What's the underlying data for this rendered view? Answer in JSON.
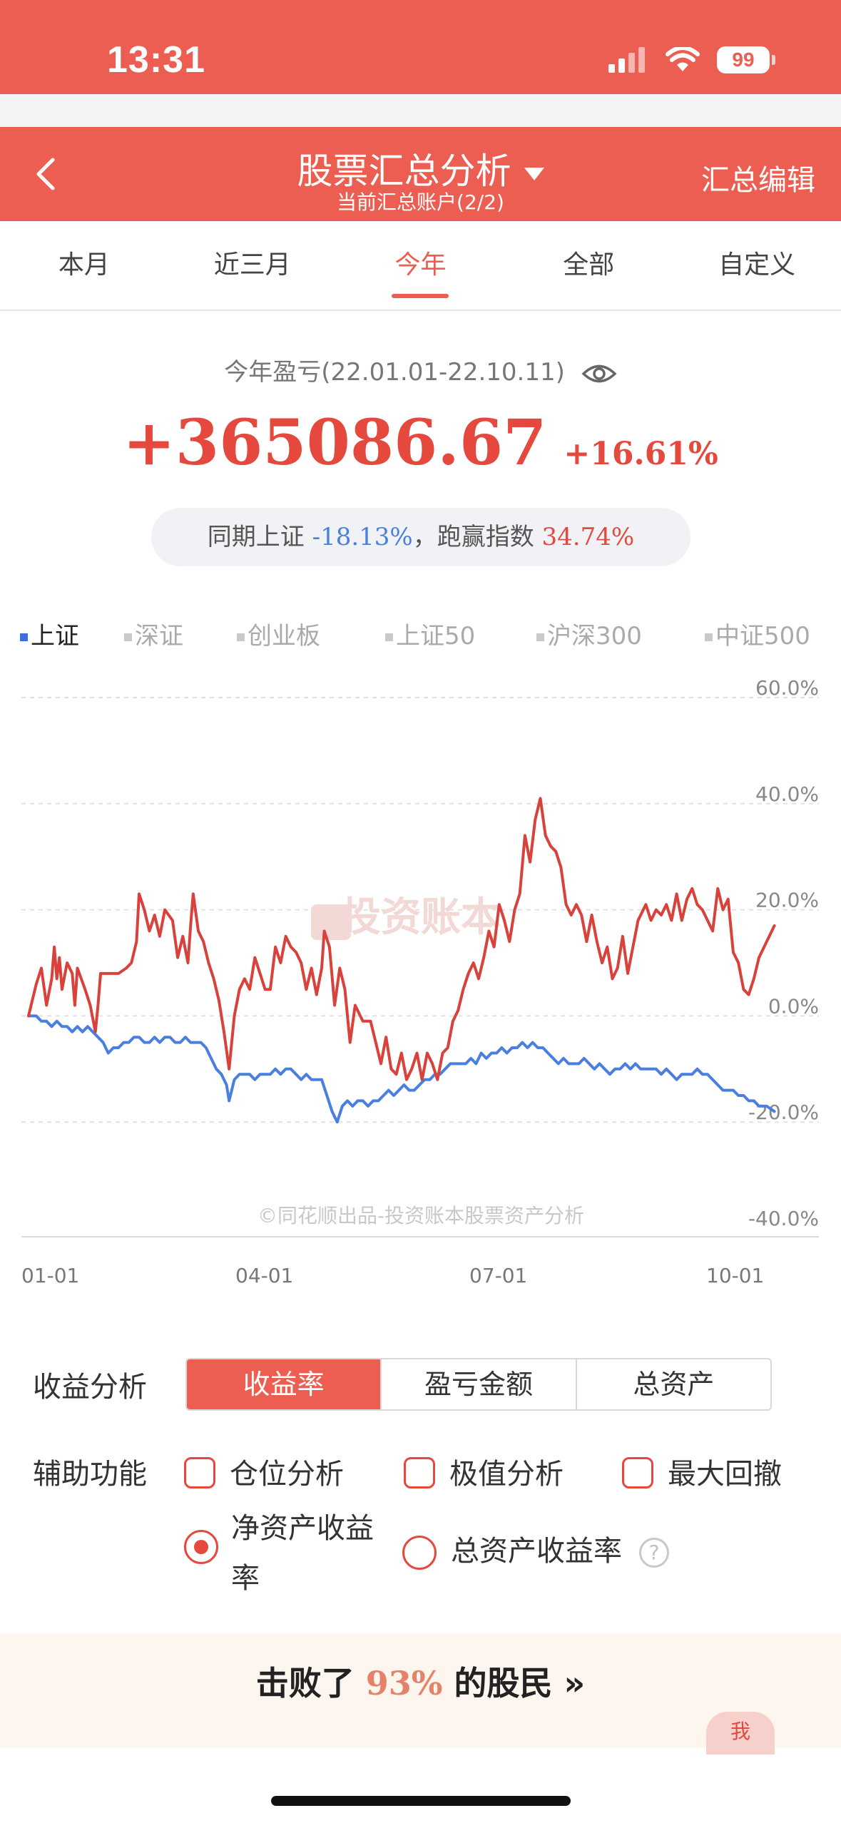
{
  "status_bar": {
    "time": "13:31",
    "battery": "99"
  },
  "header": {
    "title": "股票汇总分析",
    "subtitle": "当前汇总账户(2/2)",
    "edit_label": "汇总编辑"
  },
  "tabs": [
    {
      "label": "本月",
      "active": false
    },
    {
      "label": "近三月",
      "active": false
    },
    {
      "label": "今年",
      "active": true
    },
    {
      "label": "全部",
      "active": false
    },
    {
      "label": "自定义",
      "active": false
    }
  ],
  "summary": {
    "label": "今年盈亏(22.01.01-22.10.11)",
    "amount": "+365086.67",
    "percent": "+16.61%",
    "compare_prefix": "同期上证",
    "compare_index": "-18.13%",
    "compare_mid": "，跑赢指数",
    "compare_excess": "34.74%"
  },
  "legend": [
    {
      "label": "上证",
      "active": true
    },
    {
      "label": "深证",
      "active": false
    },
    {
      "label": "创业板",
      "active": false
    },
    {
      "label": "上证50",
      "active": false
    },
    {
      "label": "沪深300",
      "active": false
    },
    {
      "label": "中证500",
      "active": false
    }
  ],
  "chart_data": {
    "type": "line",
    "watermark": "投资账本",
    "credit": "©同花顺出品-投资账本股票资产分析",
    "y_ticks": [
      "60.0%",
      "40.0%",
      "20.0%",
      "0.0%",
      "-20.0%",
      "-40.0%"
    ],
    "x_ticks": [
      "01-01",
      "04-01",
      "07-01",
      "10-01"
    ],
    "ylim": [
      -40,
      60
    ],
    "xlim_day": [
      0,
      284
    ],
    "colors": {
      "portfolio": "#d9423a",
      "index": "#4a7fe0"
    },
    "series": [
      {
        "key": "portfolio",
        "points": [
          [
            0,
            0
          ],
          [
            3,
            6
          ],
          [
            5,
            9
          ],
          [
            7,
            2
          ],
          [
            9,
            7
          ],
          [
            10,
            13
          ],
          [
            11,
            7
          ],
          [
            12,
            11
          ],
          [
            13,
            5
          ],
          [
            15,
            10
          ],
          [
            17,
            8
          ],
          [
            18,
            2
          ],
          [
            19,
            9
          ],
          [
            22,
            5
          ],
          [
            24,
            2
          ],
          [
            26,
            -3
          ],
          [
            27,
            2
          ],
          [
            28,
            8
          ],
          [
            35,
            8
          ],
          [
            38,
            9
          ],
          [
            40,
            10
          ],
          [
            42,
            14
          ],
          [
            43,
            23
          ],
          [
            45,
            20
          ],
          [
            47,
            16
          ],
          [
            49,
            19
          ],
          [
            51,
            15
          ],
          [
            53,
            20
          ],
          [
            56,
            18
          ],
          [
            58,
            11
          ],
          [
            60,
            15
          ],
          [
            62,
            10
          ],
          [
            63,
            17
          ],
          [
            64,
            23
          ],
          [
            66,
            16
          ],
          [
            68,
            14
          ],
          [
            70,
            10
          ],
          [
            72,
            7
          ],
          [
            74,
            3
          ],
          [
            76,
            -3
          ],
          [
            78,
            -10
          ],
          [
            80,
            0
          ],
          [
            82,
            5
          ],
          [
            84,
            7
          ],
          [
            86,
            5
          ],
          [
            88,
            11
          ],
          [
            90,
            8
          ],
          [
            92,
            5
          ],
          [
            94,
            5
          ],
          [
            96,
            13
          ],
          [
            98,
            10
          ],
          [
            100,
            15
          ],
          [
            102,
            13
          ],
          [
            104,
            12
          ],
          [
            106,
            10
          ],
          [
            108,
            5
          ],
          [
            110,
            9
          ],
          [
            112,
            4
          ],
          [
            114,
            9
          ],
          [
            115,
            16
          ],
          [
            117,
            13
          ],
          [
            119,
            2
          ],
          [
            121,
            9
          ],
          [
            123,
            5
          ],
          [
            125,
            -5
          ],
          [
            127,
            2
          ],
          [
            130,
            -1
          ],
          [
            133,
            -1
          ],
          [
            135,
            -5
          ],
          [
            137,
            -9
          ],
          [
            139,
            -4
          ],
          [
            141,
            -10
          ],
          [
            143,
            -11
          ],
          [
            145,
            -7
          ],
          [
            147,
            -12
          ],
          [
            149,
            -10
          ],
          [
            151,
            -7
          ],
          [
            153,
            -12
          ],
          [
            155,
            -7
          ],
          [
            157,
            -9
          ],
          [
            159,
            -12
          ],
          [
            161,
            -7
          ],
          [
            163,
            -6
          ],
          [
            165,
            -1
          ],
          [
            167,
            1
          ],
          [
            169,
            5
          ],
          [
            171,
            8
          ],
          [
            173,
            10
          ],
          [
            175,
            7
          ],
          [
            177,
            11
          ],
          [
            179,
            16
          ],
          [
            181,
            13
          ],
          [
            183,
            21
          ],
          [
            185,
            18
          ],
          [
            187,
            14
          ],
          [
            189,
            20
          ],
          [
            191,
            23
          ],
          [
            193,
            34
          ],
          [
            195,
            29
          ],
          [
            197,
            37
          ],
          [
            199,
            41
          ],
          [
            201,
            34
          ],
          [
            203,
            32
          ],
          [
            205,
            31
          ],
          [
            207,
            28
          ],
          [
            209,
            21
          ],
          [
            211,
            19
          ],
          [
            213,
            21
          ],
          [
            215,
            19
          ],
          [
            217,
            14
          ],
          [
            219,
            19
          ],
          [
            221,
            14
          ],
          [
            223,
            10
          ],
          [
            225,
            13
          ],
          [
            227,
            7
          ],
          [
            229,
            9
          ],
          [
            231,
            15
          ],
          [
            233,
            8
          ],
          [
            235,
            13
          ],
          [
            237,
            18
          ],
          [
            240,
            21
          ],
          [
            242,
            18
          ],
          [
            244,
            20
          ],
          [
            246,
            19
          ],
          [
            248,
            21
          ],
          [
            250,
            18
          ],
          [
            252,
            23
          ],
          [
            254,
            18
          ],
          [
            256,
            22
          ],
          [
            258,
            24
          ],
          [
            260,
            21
          ],
          [
            262,
            20
          ],
          [
            264,
            18
          ],
          [
            266,
            16
          ],
          [
            268,
            24
          ],
          [
            270,
            20
          ],
          [
            272,
            22
          ],
          [
            274,
            12
          ],
          [
            276,
            10
          ],
          [
            278,
            5
          ],
          [
            280,
            4
          ],
          [
            282,
            7
          ],
          [
            284,
            11
          ],
          [
            287,
            14
          ],
          [
            290,
            17
          ]
        ]
      },
      {
        "key": "index",
        "points": [
          [
            0,
            0
          ],
          [
            3,
            0
          ],
          [
            5,
            -1
          ],
          [
            7,
            -1
          ],
          [
            9,
            -2
          ],
          [
            11,
            -1
          ],
          [
            13,
            -2
          ],
          [
            15,
            -2
          ],
          [
            17,
            -3
          ],
          [
            19,
            -2
          ],
          [
            21,
            -3
          ],
          [
            23,
            -2
          ],
          [
            25,
            -3
          ],
          [
            27,
            -4
          ],
          [
            29,
            -5
          ],
          [
            31,
            -7
          ],
          [
            33,
            -6
          ],
          [
            35,
            -6
          ],
          [
            37,
            -5
          ],
          [
            39,
            -5
          ],
          [
            41,
            -4
          ],
          [
            43,
            -4
          ],
          [
            45,
            -5
          ],
          [
            47,
            -5
          ],
          [
            49,
            -4
          ],
          [
            51,
            -5
          ],
          [
            53,
            -4
          ],
          [
            55,
            -4
          ],
          [
            57,
            -5
          ],
          [
            59,
            -5
          ],
          [
            61,
            -4
          ],
          [
            63,
            -5
          ],
          [
            65,
            -5
          ],
          [
            67,
            -5
          ],
          [
            69,
            -6
          ],
          [
            71,
            -8
          ],
          [
            73,
            -10
          ],
          [
            75,
            -11
          ],
          [
            77,
            -13
          ],
          [
            78,
            -16
          ],
          [
            80,
            -12
          ],
          [
            82,
            -11
          ],
          [
            84,
            -11
          ],
          [
            86,
            -11
          ],
          [
            88,
            -12
          ],
          [
            90,
            -11
          ],
          [
            92,
            -11
          ],
          [
            94,
            -11
          ],
          [
            96,
            -10
          ],
          [
            98,
            -11
          ],
          [
            100,
            -10
          ],
          [
            102,
            -10
          ],
          [
            104,
            -11
          ],
          [
            106,
            -12
          ],
          [
            108,
            -11
          ],
          [
            110,
            -12
          ],
          [
            112,
            -12
          ],
          [
            114,
            -12
          ],
          [
            116,
            -15
          ],
          [
            118,
            -18
          ],
          [
            120,
            -20
          ],
          [
            122,
            -17
          ],
          [
            124,
            -16
          ],
          [
            126,
            -17
          ],
          [
            128,
            -16
          ],
          [
            130,
            -16
          ],
          [
            132,
            -17
          ],
          [
            134,
            -16
          ],
          [
            136,
            -16
          ],
          [
            138,
            -15
          ],
          [
            140,
            -14
          ],
          [
            142,
            -15
          ],
          [
            144,
            -14
          ],
          [
            146,
            -13
          ],
          [
            148,
            -14
          ],
          [
            150,
            -14
          ],
          [
            152,
            -13
          ],
          [
            154,
            -12
          ],
          [
            156,
            -12
          ],
          [
            158,
            -11
          ],
          [
            160,
            -11
          ],
          [
            162,
            -10
          ],
          [
            164,
            -9
          ],
          [
            166,
            -9
          ],
          [
            168,
            -9
          ],
          [
            170,
            -9
          ],
          [
            172,
            -8
          ],
          [
            174,
            -9
          ],
          [
            176,
            -7
          ],
          [
            178,
            -8
          ],
          [
            180,
            -7
          ],
          [
            182,
            -7
          ],
          [
            184,
            -6
          ],
          [
            186,
            -7
          ],
          [
            188,
            -6
          ],
          [
            190,
            -6
          ],
          [
            192,
            -5
          ],
          [
            194,
            -6
          ],
          [
            196,
            -5
          ],
          [
            198,
            -6
          ],
          [
            200,
            -6
          ],
          [
            202,
            -7
          ],
          [
            204,
            -8
          ],
          [
            206,
            -9
          ],
          [
            208,
            -8
          ],
          [
            210,
            -9
          ],
          [
            212,
            -9
          ],
          [
            214,
            -9
          ],
          [
            216,
            -8
          ],
          [
            218,
            -9
          ],
          [
            220,
            -10
          ],
          [
            222,
            -9
          ],
          [
            224,
            -10
          ],
          [
            226,
            -11
          ],
          [
            228,
            -10
          ],
          [
            230,
            -10
          ],
          [
            232,
            -9
          ],
          [
            234,
            -10
          ],
          [
            236,
            -9
          ],
          [
            238,
            -10
          ],
          [
            240,
            -10
          ],
          [
            242,
            -10
          ],
          [
            244,
            -10
          ],
          [
            246,
            -11
          ],
          [
            248,
            -10
          ],
          [
            250,
            -11
          ],
          [
            252,
            -12
          ],
          [
            254,
            -11
          ],
          [
            256,
            -11
          ],
          [
            258,
            -11
          ],
          [
            260,
            -10
          ],
          [
            262,
            -11
          ],
          [
            264,
            -11
          ],
          [
            266,
            -12
          ],
          [
            268,
            -13
          ],
          [
            270,
            -14
          ],
          [
            272,
            -14
          ],
          [
            274,
            -14
          ],
          [
            276,
            -15
          ],
          [
            278,
            -15
          ],
          [
            280,
            -16
          ],
          [
            282,
            -16
          ],
          [
            284,
            -17
          ],
          [
            287,
            -17
          ],
          [
            290,
            -18
          ]
        ]
      }
    ]
  },
  "analysis": {
    "label": "收益分析",
    "options": [
      {
        "label": "收益率",
        "active": true
      },
      {
        "label": "盈亏金额",
        "active": false
      },
      {
        "label": "总资产",
        "active": false
      }
    ]
  },
  "aux": {
    "label": "辅助功能",
    "checkbox_position": "仓位分析",
    "checkbox_extreme": "极值分析",
    "checkbox_drawdown": "最大回撤",
    "radio_roe_line1": "净资产收益",
    "radio_roe_line2": "率",
    "radio_roa": "总资产收益率",
    "help": "?"
  },
  "beat": {
    "prefix": "击败了",
    "percent": "93%",
    "suffix": "的股民",
    "arrow": "»",
    "me_badge": "我"
  }
}
